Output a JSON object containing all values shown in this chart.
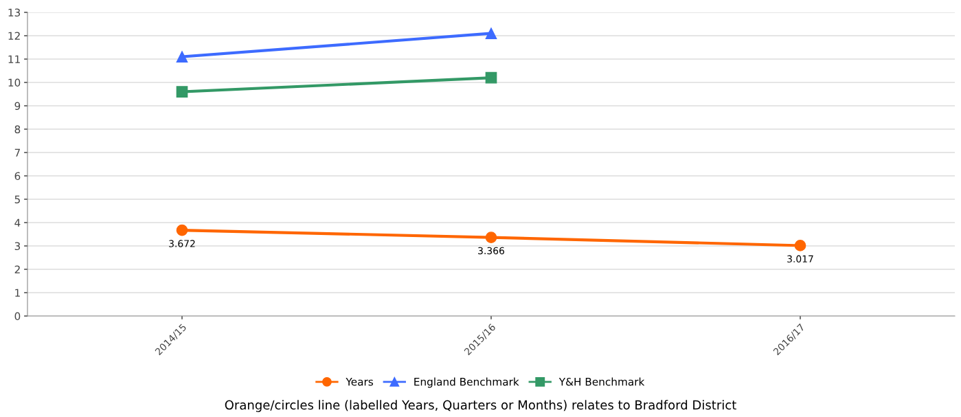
{
  "chart_data": {
    "type": "line",
    "categories": [
      "2014/15",
      "2015/16",
      "2016/17"
    ],
    "series": [
      {
        "name": "Years",
        "color": "#ff6600",
        "marker": "circle",
        "values": [
          3.672,
          3.366,
          3.017
        ],
        "value_labels": [
          "3.672",
          "3.366",
          "3.017"
        ]
      },
      {
        "name": "England Benchmark",
        "color": "#3d6bff",
        "marker": "triangle",
        "values": [
          11.1,
          12.1,
          null
        ]
      },
      {
        "name": "Y&H Benchmark",
        "color": "#339966",
        "marker": "square",
        "values": [
          9.6,
          10.2,
          null
        ]
      }
    ],
    "ylim": [
      0,
      13
    ],
    "yticks": [
      0,
      1,
      2,
      3,
      4,
      5,
      6,
      7,
      8,
      9,
      10,
      11,
      12,
      13
    ],
    "grid": "y",
    "legend": "bottom",
    "annotations": [
      "Orange/circles line (labelled Years, Quarters or Months) relates to Bradford District"
    ]
  }
}
